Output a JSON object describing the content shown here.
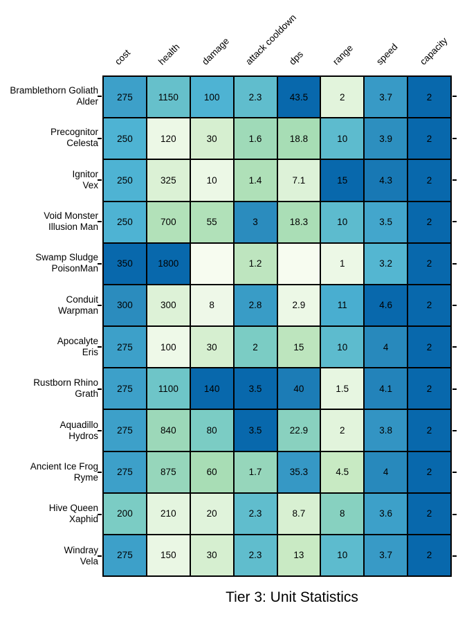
{
  "chart_data": {
    "type": "heatmap",
    "title": "Tier 3: Unit Statistics",
    "columns": [
      "cost",
      "health",
      "damage",
      "attack cooldown",
      "dps",
      "range",
      "speed",
      "capacity"
    ],
    "rows": [
      {
        "label_lines": [
          "Bramblethorn Goliath",
          "Alder"
        ],
        "values": [
          "275",
          "1150",
          "100",
          "2.3",
          "43.5",
          "2",
          "3.7",
          "2"
        ]
      },
      {
        "label_lines": [
          "Precognitor",
          "Celesta"
        ],
        "values": [
          "250",
          "120",
          "30",
          "1.6",
          "18.8",
          "10",
          "3.9",
          "2"
        ]
      },
      {
        "label_lines": [
          "Ignitor",
          "Vex"
        ],
        "values": [
          "250",
          "325",
          "10",
          "1.4",
          "7.1",
          "15",
          "4.3",
          "2"
        ]
      },
      {
        "label_lines": [
          "Void Monster",
          "Illusion Man"
        ],
        "values": [
          "250",
          "700",
          "55",
          "3",
          "18.3",
          "10",
          "3.5",
          "2"
        ]
      },
      {
        "label_lines": [
          "Swamp Sludge",
          "PoisonMan"
        ],
        "values": [
          "350",
          "1800",
          "",
          "1.2",
          "",
          "1",
          "3.2",
          "2"
        ]
      },
      {
        "label_lines": [
          "Conduit",
          "Warpman"
        ],
        "values": [
          "300",
          "300",
          "8",
          "2.8",
          "2.9",
          "11",
          "4.6",
          "2"
        ]
      },
      {
        "label_lines": [
          "Apocalyte",
          "Eris"
        ],
        "values": [
          "275",
          "100",
          "30",
          "2",
          "15",
          "10",
          "4",
          "2"
        ]
      },
      {
        "label_lines": [
          "Rustborn Rhino",
          "Grath"
        ],
        "values": [
          "275",
          "1100",
          "140",
          "3.5",
          "40",
          "1.5",
          "4.1",
          "2"
        ]
      },
      {
        "label_lines": [
          "Aquadillo",
          "Hydros"
        ],
        "values": [
          "275",
          "840",
          "80",
          "3.5",
          "22.9",
          "2",
          "3.8",
          "2"
        ]
      },
      {
        "label_lines": [
          "Ancient Ice Frog",
          "Ryme"
        ],
        "values": [
          "275",
          "875",
          "60",
          "1.7",
          "35.3",
          "4.5",
          "4",
          "2"
        ]
      },
      {
        "label_lines": [
          "Hive Queen",
          "Xaphid"
        ],
        "values": [
          "200",
          "210",
          "20",
          "2.3",
          "8.7",
          "8",
          "3.6",
          "2"
        ]
      },
      {
        "label_lines": [
          "Windray",
          "Vela"
        ],
        "values": [
          "275",
          "150",
          "30",
          "2.3",
          "13",
          "10",
          "3.7",
          "2"
        ]
      }
    ],
    "color_scale": {
      "name": "GnBu",
      "anchors": [
        "#f7fcf0",
        "#e0f3db",
        "#ccebc5",
        "#a8ddb5",
        "#7bccc4",
        "#4eb3d3",
        "#2b8cbe",
        "#0868ac"
      ],
      "normalization": "value / column max"
    },
    "cell_text_color": "#000000",
    "grid_line_color": "#000000",
    "background_color": "#ffffff"
  }
}
